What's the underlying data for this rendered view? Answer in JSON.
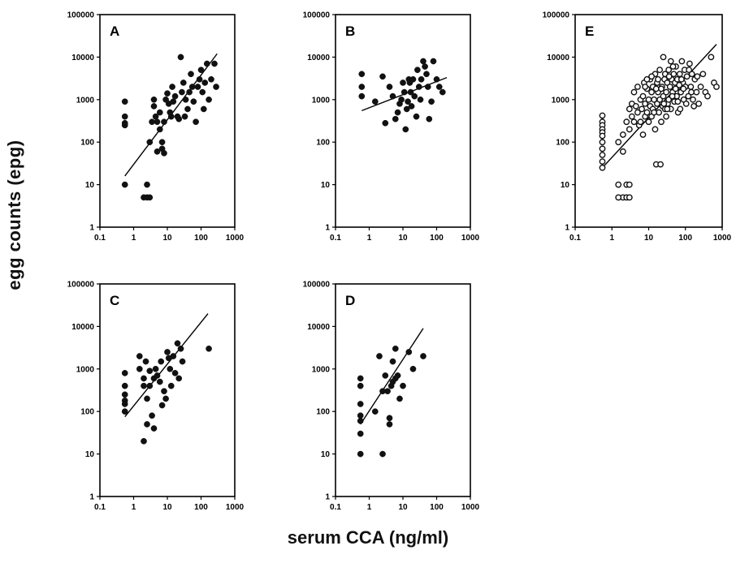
{
  "figure": {
    "ylabel": "egg counts (epg)",
    "xlabel": "serum CCA (ng/ml)"
  },
  "chart_data": [
    {
      "type": "scatter",
      "panel_label": "A",
      "xscale": "log",
      "yscale": "log",
      "xlim": [
        0.1,
        1000
      ],
      "ylim": [
        1,
        100000
      ],
      "x_ticks": [
        "0.1",
        "1",
        "10",
        "100",
        "1000"
      ],
      "y_ticks": [
        "1",
        "10",
        "100",
        "1000",
        "10000",
        "100000"
      ],
      "marker": "filled",
      "points": [
        [
          0.55,
          900
        ],
        [
          0.55,
          400
        ],
        [
          0.55,
          280
        ],
        [
          0.55,
          250
        ],
        [
          0.55,
          10
        ],
        [
          2,
          5
        ],
        [
          2.5,
          5
        ],
        [
          3,
          5
        ],
        [
          2.5,
          10
        ],
        [
          3,
          100
        ],
        [
          3.5,
          300
        ],
        [
          4,
          1000
        ],
        [
          4,
          700
        ],
        [
          4.5,
          400
        ],
        [
          5,
          60
        ],
        [
          5,
          300
        ],
        [
          6,
          500
        ],
        [
          6,
          200
        ],
        [
          7,
          100
        ],
        [
          7,
          70
        ],
        [
          8,
          55
        ],
        [
          8,
          300
        ],
        [
          9,
          1000
        ],
        [
          10,
          1400
        ],
        [
          11,
          800
        ],
        [
          12,
          500
        ],
        [
          13,
          400
        ],
        [
          14,
          2000
        ],
        [
          15,
          900
        ],
        [
          17,
          1200
        ],
        [
          20,
          400
        ],
        [
          22,
          350
        ],
        [
          25,
          10000
        ],
        [
          27,
          1500
        ],
        [
          30,
          2500
        ],
        [
          33,
          400
        ],
        [
          35,
          1000
        ],
        [
          40,
          600
        ],
        [
          45,
          1500
        ],
        [
          50,
          4000
        ],
        [
          55,
          2000
        ],
        [
          60,
          900
        ],
        [
          70,
          300
        ],
        [
          80,
          2000
        ],
        [
          90,
          3000
        ],
        [
          100,
          5000
        ],
        [
          110,
          1500
        ],
        [
          120,
          600
        ],
        [
          130,
          2500
        ],
        [
          150,
          7000
        ],
        [
          170,
          1000
        ],
        [
          200,
          3000
        ],
        [
          250,
          7000
        ],
        [
          280,
          2000
        ]
      ],
      "regression": [
        [
          0.55,
          16
        ],
        [
          300,
          12000
        ]
      ]
    },
    {
      "type": "scatter",
      "panel_label": "B",
      "xscale": "log",
      "yscale": "log",
      "xlim": [
        0.1,
        1000
      ],
      "ylim": [
        1,
        100000
      ],
      "x_ticks": [
        "0.1",
        "1",
        "10",
        "100",
        "1000"
      ],
      "y_ticks": [
        "1",
        "10",
        "100",
        "1000",
        "10000",
        "100000"
      ],
      "marker": "filled",
      "points": [
        [
          0.6,
          4000
        ],
        [
          0.6,
          2000
        ],
        [
          0.6,
          1200
        ],
        [
          1.5,
          900
        ],
        [
          2.5,
          3500
        ],
        [
          3,
          280
        ],
        [
          4,
          2000
        ],
        [
          5,
          1200
        ],
        [
          6,
          350
        ],
        [
          7,
          500
        ],
        [
          8,
          800
        ],
        [
          9,
          1000
        ],
        [
          10,
          2500
        ],
        [
          11,
          1500
        ],
        [
          12,
          200
        ],
        [
          13,
          600
        ],
        [
          14,
          900
        ],
        [
          15,
          3000
        ],
        [
          16,
          2500
        ],
        [
          17,
          1500
        ],
        [
          18,
          700
        ],
        [
          20,
          3000
        ],
        [
          22,
          1200
        ],
        [
          25,
          400
        ],
        [
          27,
          5000
        ],
        [
          30,
          2000
        ],
        [
          33,
          1000
        ],
        [
          35,
          3000
        ],
        [
          40,
          8000
        ],
        [
          45,
          6000
        ],
        [
          50,
          4000
        ],
        [
          55,
          2000
        ],
        [
          60,
          350
        ],
        [
          70,
          900
        ],
        [
          80,
          8000
        ],
        [
          100,
          3000
        ],
        [
          120,
          2000
        ],
        [
          150,
          1500
        ]
      ],
      "regression": [
        [
          0.6,
          550
        ],
        [
          200,
          3300
        ]
      ]
    },
    {
      "type": "scatter",
      "panel_label": "C",
      "xscale": "log",
      "yscale": "log",
      "xlim": [
        0.1,
        1000
      ],
      "ylim": [
        1,
        100000
      ],
      "x_ticks": [
        "0.1",
        "1",
        "10",
        "100",
        "1000"
      ],
      "y_ticks": [
        "1",
        "10",
        "100",
        "1000",
        "10000",
        "100000"
      ],
      "marker": "filled",
      "points": [
        [
          0.55,
          800
        ],
        [
          0.55,
          400
        ],
        [
          0.55,
          250
        ],
        [
          0.55,
          180
        ],
        [
          0.55,
          150
        ],
        [
          0.55,
          100
        ],
        [
          1.5,
          2000
        ],
        [
          1.5,
          1000
        ],
        [
          2,
          600
        ],
        [
          2,
          400
        ],
        [
          2,
          20
        ],
        [
          2.3,
          1500
        ],
        [
          2.5,
          50
        ],
        [
          2.5,
          200
        ],
        [
          3,
          900
        ],
        [
          3,
          400
        ],
        [
          3.5,
          80
        ],
        [
          4,
          40
        ],
        [
          4,
          600
        ],
        [
          4.5,
          1000
        ],
        [
          5,
          700
        ],
        [
          6,
          500
        ],
        [
          6.5,
          1500
        ],
        [
          7,
          140
        ],
        [
          8,
          300
        ],
        [
          9,
          200
        ],
        [
          10,
          2500
        ],
        [
          11,
          1800
        ],
        [
          12,
          1000
        ],
        [
          13,
          400
        ],
        [
          15,
          2000
        ],
        [
          17,
          800
        ],
        [
          20,
          4000
        ],
        [
          22,
          600
        ],
        [
          25,
          3000
        ],
        [
          28,
          1500
        ],
        [
          170,
          3000
        ]
      ],
      "regression": [
        [
          0.55,
          75
        ],
        [
          160,
          20000
        ]
      ]
    },
    {
      "type": "scatter",
      "panel_label": "D",
      "xscale": "log",
      "yscale": "log",
      "xlim": [
        0.1,
        1000
      ],
      "ylim": [
        1,
        100000
      ],
      "x_ticks": [
        "0.1",
        "1",
        "10",
        "100",
        "1000"
      ],
      "y_ticks": [
        "1",
        "10",
        "100",
        "1000",
        "10000",
        "100000"
      ],
      "marker": "filled",
      "points": [
        [
          0.55,
          600
        ],
        [
          0.55,
          400
        ],
        [
          0.55,
          150
        ],
        [
          0.55,
          80
        ],
        [
          0.55,
          60
        ],
        [
          0.55,
          30
        ],
        [
          0.55,
          10
        ],
        [
          1.5,
          100
        ],
        [
          2,
          2000
        ],
        [
          2.5,
          300
        ],
        [
          2.5,
          10
        ],
        [
          3,
          700
        ],
        [
          3.5,
          300
        ],
        [
          4,
          50
        ],
        [
          4,
          70
        ],
        [
          4.5,
          400
        ],
        [
          5,
          1500
        ],
        [
          5,
          500
        ],
        [
          6,
          3000
        ],
        [
          6,
          600
        ],
        [
          7,
          700
        ],
        [
          8,
          200
        ],
        [
          10,
          400
        ],
        [
          15,
          2500
        ],
        [
          20,
          1000
        ],
        [
          40,
          2000
        ]
      ],
      "regression": [
        [
          0.55,
          50
        ],
        [
          40,
          9000
        ]
      ]
    },
    {
      "type": "scatter",
      "panel_label": "E",
      "xscale": "log",
      "yscale": "log",
      "xlim": [
        0.1,
        1000
      ],
      "ylim": [
        1,
        100000
      ],
      "x_ticks": [
        "0.1",
        "1",
        "10",
        "100",
        "1000"
      ],
      "y_ticks": [
        "1",
        "10",
        "100",
        "1000",
        "10000",
        "100000"
      ],
      "marker": "open",
      "points": [
        [
          0.55,
          420
        ],
        [
          0.55,
          300
        ],
        [
          0.55,
          250
        ],
        [
          0.55,
          200
        ],
        [
          0.55,
          170
        ],
        [
          0.55,
          140
        ],
        [
          0.55,
          100
        ],
        [
          0.55,
          70
        ],
        [
          0.55,
          50
        ],
        [
          0.55,
          35
        ],
        [
          0.55,
          25
        ],
        [
          1.5,
          10
        ],
        [
          2,
          5
        ],
        [
          2.5,
          5
        ],
        [
          3,
          5
        ],
        [
          2.5,
          10
        ],
        [
          3,
          10
        ],
        [
          1.5,
          5
        ],
        [
          1.5,
          100
        ],
        [
          2,
          150
        ],
        [
          2,
          60
        ],
        [
          2.5,
          300
        ],
        [
          3,
          200
        ],
        [
          3,
          600
        ],
        [
          3.5,
          800
        ],
        [
          3.5,
          400
        ],
        [
          4,
          300
        ],
        [
          4,
          1500
        ],
        [
          4.5,
          700
        ],
        [
          5,
          2000
        ],
        [
          5,
          500
        ],
        [
          5.5,
          250
        ],
        [
          6,
          1000
        ],
        [
          6,
          300
        ],
        [
          6.5,
          600
        ],
        [
          7,
          150
        ],
        [
          7,
          1200
        ],
        [
          7.5,
          2500
        ],
        [
          8,
          400
        ],
        [
          8,
          800
        ],
        [
          9,
          1800
        ],
        [
          9,
          500
        ],
        [
          10,
          1000
        ],
        [
          10,
          300
        ],
        [
          11,
          3000
        ],
        [
          11,
          700
        ],
        [
          12,
          1500
        ],
        [
          12,
          400
        ],
        [
          13,
          2000
        ],
        [
          13,
          600
        ],
        [
          14,
          1000
        ],
        [
          15,
          4000
        ],
        [
          15,
          200
        ],
        [
          16,
          30
        ],
        [
          17,
          800
        ],
        [
          17,
          2500
        ],
        [
          18,
          1500
        ],
        [
          19,
          500
        ],
        [
          20,
          5000
        ],
        [
          20,
          1000
        ],
        [
          21,
          30
        ],
        [
          22,
          300
        ],
        [
          23,
          2000
        ],
        [
          24,
          700
        ],
        [
          25,
          10000
        ],
        [
          25,
          1200
        ],
        [
          27,
          3000
        ],
        [
          28,
          600
        ],
        [
          30,
          1500
        ],
        [
          30,
          400
        ],
        [
          32,
          2500
        ],
        [
          33,
          800
        ],
        [
          35,
          5000
        ],
        [
          35,
          1000
        ],
        [
          38,
          2000
        ],
        [
          40,
          8000
        ],
        [
          40,
          600
        ],
        [
          42,
          3000
        ],
        [
          45,
          1500
        ],
        [
          48,
          4000
        ],
        [
          50,
          900
        ],
        [
          52,
          2500
        ],
        [
          55,
          6000
        ],
        [
          58,
          1200
        ],
        [
          60,
          3000
        ],
        [
          63,
          500
        ],
        [
          65,
          2000
        ],
        [
          70,
          4000
        ],
        [
          75,
          1500
        ],
        [
          80,
          8000
        ],
        [
          85,
          2500
        ],
        [
          90,
          1000
        ],
        [
          95,
          5000
        ],
        [
          100,
          2000
        ],
        [
          110,
          3500
        ],
        [
          120,
          1200
        ],
        [
          130,
          7000
        ],
        [
          140,
          2000
        ],
        [
          150,
          4000
        ],
        [
          160,
          1000
        ],
        [
          180,
          3000
        ],
        [
          200,
          1500
        ],
        [
          230,
          800
        ],
        [
          260,
          2000
        ],
        [
          300,
          4000
        ],
        [
          350,
          1500
        ],
        [
          400,
          1200
        ],
        [
          500,
          10000
        ],
        [
          600,
          2500
        ],
        [
          700,
          2000
        ],
        [
          8,
          2000
        ],
        [
          9,
          3000
        ],
        [
          12,
          3500
        ],
        [
          14,
          500
        ],
        [
          16,
          1800
        ],
        [
          18,
          3000
        ],
        [
          22,
          1800
        ],
        [
          26,
          800
        ],
        [
          28,
          4000
        ],
        [
          32,
          600
        ],
        [
          36,
          3500
        ],
        [
          44,
          1200
        ],
        [
          46,
          6000
        ],
        [
          54,
          1800
        ],
        [
          62,
          900
        ],
        [
          68,
          2200
        ],
        [
          72,
          600
        ],
        [
          78,
          3000
        ],
        [
          88,
          1800
        ],
        [
          105,
          800
        ],
        [
          125,
          5000
        ],
        [
          145,
          1500
        ],
        [
          170,
          700
        ],
        [
          210,
          3500
        ]
      ],
      "regression": [
        [
          0.55,
          25
        ],
        [
          700,
          20000
        ]
      ]
    }
  ]
}
